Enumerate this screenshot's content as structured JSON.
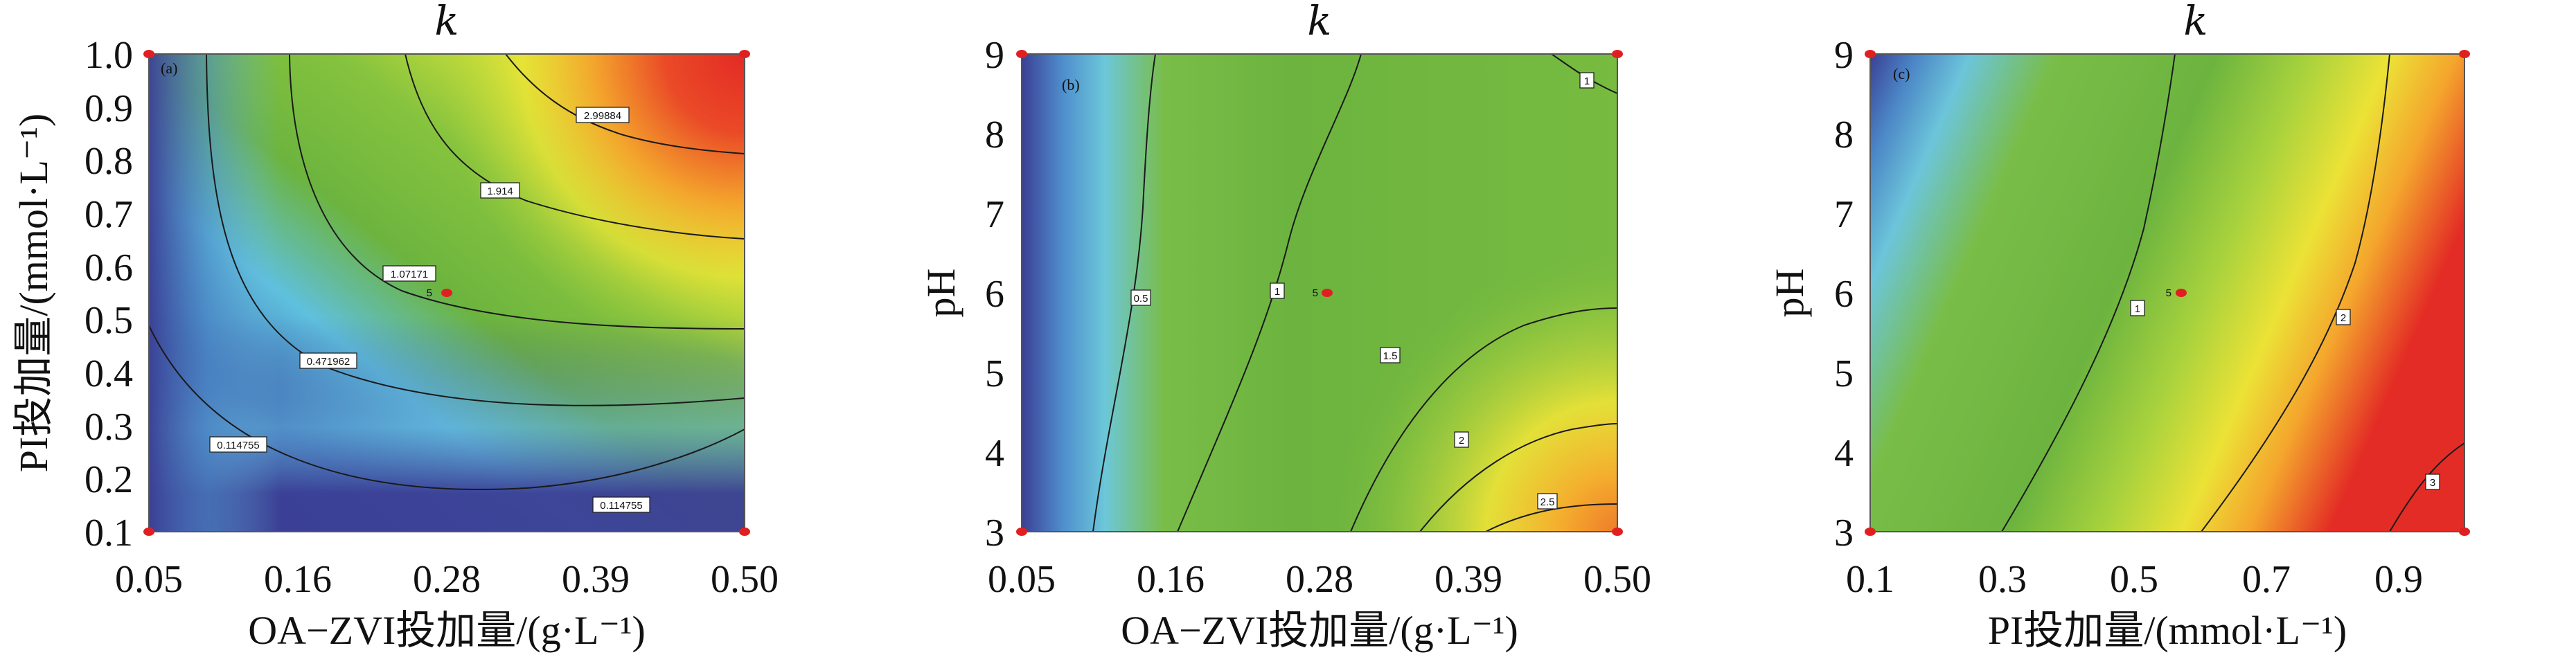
{
  "chart_data": [
    {
      "type": "heatmap",
      "panel_label": "(a)",
      "title": "k",
      "xlabel": "OA−ZVI投加量/(g·L⁻¹)",
      "ylabel": "PI投加量/(mmol·L⁻¹)",
      "xlim": [
        0.05,
        0.5
      ],
      "ylim": [
        0.1,
        1.0
      ],
      "x_ticks": [
        "0.05",
        "0.16",
        "0.28",
        "0.39",
        "0.50"
      ],
      "y_ticks": [
        "0.1",
        "0.2",
        "0.3",
        "0.4",
        "0.5",
        "0.6",
        "0.7",
        "0.8",
        "0.9",
        "1.0"
      ],
      "contour_levels": [
        "0.114755",
        "0.471962",
        "1.07171",
        "1.914",
        "2.99884"
      ],
      "center_point": {
        "x": 0.28,
        "y": 0.55,
        "label": "5"
      },
      "colors": {
        "low": "#3b3f95",
        "mid": "#6cb43f",
        "high": "#e53225"
      }
    },
    {
      "type": "heatmap",
      "panel_label": "(b)",
      "title": "k",
      "xlabel": "OA−ZVI投加量/(g·L⁻¹)",
      "ylabel": "pH",
      "xlim": [
        0.05,
        0.5
      ],
      "ylim": [
        3,
        9
      ],
      "x_ticks": [
        "0.05",
        "0.16",
        "0.28",
        "0.39",
        "0.50"
      ],
      "y_ticks": [
        "3",
        "4",
        "5",
        "6",
        "7",
        "8",
        "9"
      ],
      "contour_levels": [
        "0.5",
        "1",
        "1",
        "1.5",
        "2",
        "2.5"
      ],
      "center_point": {
        "x": 0.28,
        "y": 6,
        "label": "5"
      },
      "colors": {
        "low": "#3b3f95",
        "mid": "#6cb43f",
        "high": "#e53225"
      }
    },
    {
      "type": "heatmap",
      "panel_label": "(c)",
      "title": "k",
      "xlabel": "PI投加量/(mmol·L⁻¹)",
      "ylabel": "pH",
      "xlim": [
        0.1,
        1.0
      ],
      "ylim": [
        3,
        9
      ],
      "x_ticks": [
        "0.1",
        "0.3",
        "0.5",
        "0.7",
        "0.9"
      ],
      "y_ticks": [
        "3",
        "4",
        "5",
        "6",
        "7",
        "8",
        "9"
      ],
      "contour_levels": [
        "1",
        "2",
        "3"
      ],
      "center_point": {
        "x": 0.55,
        "y": 6,
        "label": "5"
      },
      "colors": {
        "low": "#3b3f95",
        "mid": "#6cb43f",
        "high": "#e53225"
      }
    }
  ]
}
